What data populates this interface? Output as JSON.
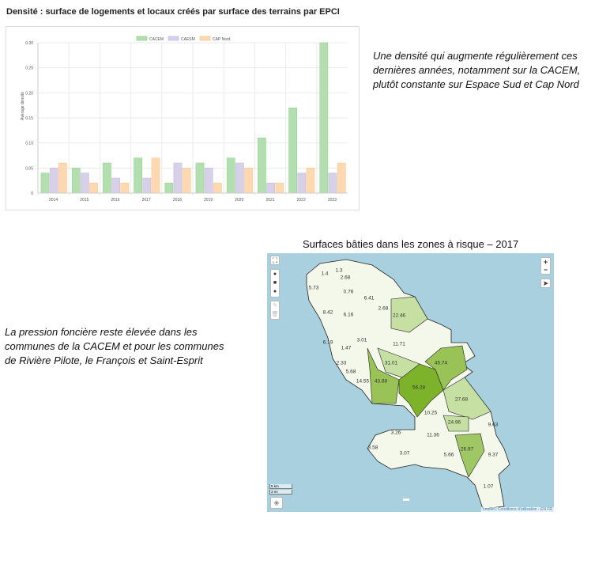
{
  "title": "Densité : surface de logements et locaux créés par surface des terrains par EPCI",
  "note_top": "Une densité qui augmente régulièrement ces dernières années, notamment sur la CACEM, plutôt constante sur Espace Sud et Cap Nord",
  "note_left": "La pression foncière reste élevée dans les communes de la CACEM et pour les communes de Rivière Pilote, le François et Saint-Esprit",
  "map": {
    "title": "Surfaces bâties dans les zones à risque – 2017",
    "labels": [
      "1.4",
      "1.3",
      "2.68",
      "5.73",
      "0.76",
      "6.41",
      "2.68",
      "8.42",
      "6.16",
      "22.46",
      "3.01",
      "6.19",
      "11.71",
      "1.47",
      "31.01",
      "45.74",
      "2.33",
      "5.68",
      "14.55",
      "43.88",
      "56.28",
      "27.68",
      "10.25",
      "24.96",
      "9.63",
      "3.26",
      "11.36",
      "26.97",
      "3.58",
      "3.07",
      "5.66",
      "9.37",
      "1.07"
    ],
    "zoom_in": "+",
    "zoom_out": "−",
    "scale_km": "5 km",
    "scale_mi": "3 mi",
    "attribution": "Leaflet | Conditions d'utilisation - EN FR"
  },
  "chart_data": {
    "type": "bar",
    "title": "",
    "xlabel": "",
    "ylabel": "Average densite",
    "categories": [
      "2014",
      "2015",
      "2016",
      "2017",
      "2018",
      "2019",
      "2020",
      "2021",
      "2022",
      "2023"
    ],
    "series": [
      {
        "name": "CACEM",
        "color": "#b3dfb0",
        "border": "#8fce8a",
        "values": [
          0.04,
          0.05,
          0.06,
          0.07,
          0.02,
          0.06,
          0.07,
          0.11,
          0.17,
          0.3
        ]
      },
      {
        "name": "CAESM",
        "color": "#d8d0e8",
        "border": "#c4b8dd",
        "values": [
          0.05,
          0.04,
          0.03,
          0.03,
          0.06,
          0.05,
          0.06,
          0.02,
          0.04,
          0.04
        ]
      },
      {
        "name": "CAP Nord",
        "color": "#fdd8b0",
        "border": "#fbc48c",
        "values": [
          0.06,
          0.02,
          0.02,
          0.07,
          0.05,
          0.02,
          0.05,
          0.02,
          0.05,
          0.06
        ]
      }
    ],
    "ylim": [
      0,
      0.3
    ],
    "yticks": [
      "0",
      "0.05",
      "0.10",
      "0.15",
      "0.20",
      "0.25",
      "0.30"
    ],
    "legend": "top",
    "grid": true
  }
}
